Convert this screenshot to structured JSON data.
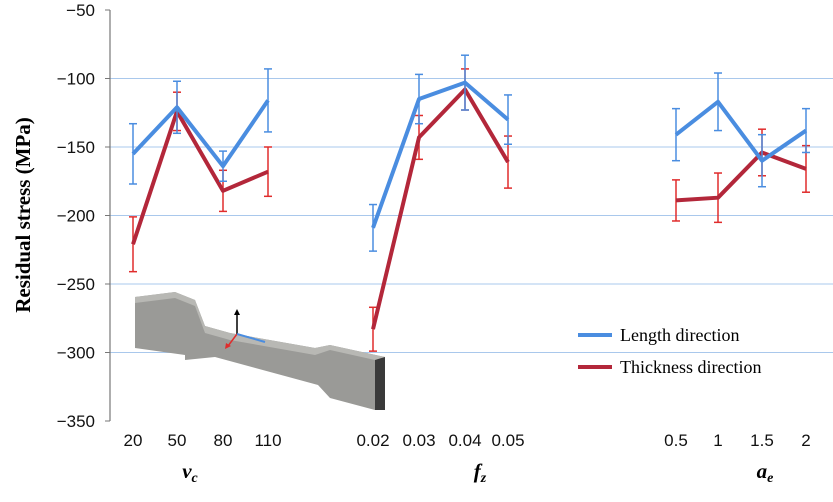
{
  "chart_data": {
    "type": "line",
    "ylabel": "Residual stress (MPa)",
    "ylim": [
      -350,
      -50
    ],
    "yticks": [
      -50,
      -100,
      -150,
      -200,
      -250,
      -300,
      -350
    ],
    "grid": true,
    "legend_position": "right",
    "groups": [
      {
        "name": "v",
        "sub": "c",
        "categories": [
          "20",
          "50",
          "80",
          "110"
        ],
        "series": [
          {
            "name": "Length direction",
            "values": [
              -155,
              -121,
              -164,
              -116
            ],
            "errors": [
              22,
              19,
              11,
              23
            ]
          },
          {
            "name": "Thickness direction",
            "values": [
              -221,
              -124,
              -182,
              -168
            ],
            "errors": [
              20,
              14,
              15,
              18
            ]
          }
        ]
      },
      {
        "name": "f",
        "sub": "z",
        "categories": [
          "0.02",
          "0.03",
          "0.04",
          "0.05"
        ],
        "series": [
          {
            "name": "Length direction",
            "values": [
              -209,
              -115,
              -103,
              -130
            ],
            "errors": [
              17,
              18,
              20,
              18
            ]
          },
          {
            "name": "Thickness direction",
            "values": [
              -283,
              -143,
              -108,
              -161
            ],
            "errors": [
              16,
              16,
              15,
              19
            ]
          }
        ]
      },
      {
        "name": "a",
        "sub": "e",
        "categories": [
          "0.5",
          "1",
          "1.5",
          "2"
        ],
        "series": [
          {
            "name": "Length direction",
            "values": [
              -141,
              -117,
              -160,
              -138
            ],
            "errors": [
              19,
              21,
              19,
              16
            ]
          },
          {
            "name": "Thickness direction",
            "values": [
              -189,
              -187,
              -154,
              -166
            ],
            "errors": [
              15,
              18,
              17,
              17
            ]
          }
        ]
      }
    ],
    "legend": [
      "Length direction",
      "Thickness direction"
    ],
    "colors": [
      "#4a8de0",
      "#b3273a"
    ],
    "errcolors": [
      "#4a8de0",
      "#e02c2c"
    ]
  }
}
